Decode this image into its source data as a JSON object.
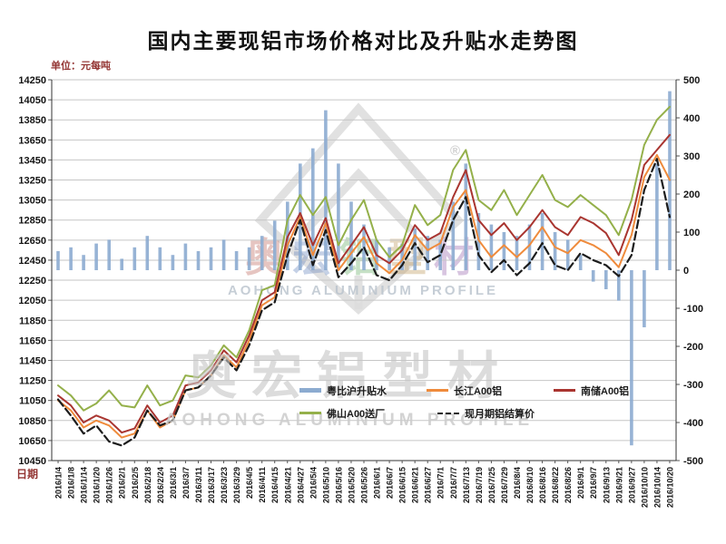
{
  "watermark": {
    "cn": "奥宏铝型材",
    "en": "AOHONG ALUMINIUM PROFILE",
    "registered_mark": "®",
    "char_colors": [
      "#bf6a5e",
      "#6a88bf",
      "#6ab06a",
      "#bf9a5e",
      "#9a6ab0"
    ]
  },
  "chart_data": {
    "type": "bar+line",
    "title": "国内主要现铝市场价格对比及升贴水走势图",
    "ylabel": "单位：元每吨",
    "xlabel": "日期",
    "grid": true,
    "legend_position": "bottom-inside",
    "left_axis": {
      "min": 10450,
      "max": 14250,
      "step": 200,
      "ticks": [
        "14250",
        "14050",
        "13850",
        "13650",
        "13450",
        "13250",
        "13050",
        "12850",
        "12650",
        "12450",
        "12250",
        "12050",
        "11850",
        "11650",
        "11450",
        "11250",
        "11050",
        "10850",
        "10650",
        "10450"
      ]
    },
    "right_axis": {
      "min": -500,
      "max": 500,
      "step": 100,
      "ticks": [
        "500",
        "400",
        "300",
        "200",
        "100",
        "0",
        "-100",
        "-200",
        "-300",
        "-400",
        "-500"
      ]
    },
    "categories": [
      "2016/1/4",
      "2016/1/8",
      "2016/1/14",
      "2016/1/20",
      "2016/1/26",
      "2016/2/1",
      "2016/2/5",
      "2016/2/18",
      "2016/2/24",
      "2016/3/1",
      "2016/3/7",
      "2016/3/11",
      "2016/3/17",
      "2016/3/23",
      "2016/3/29",
      "2016/4/5",
      "2016/4/11",
      "2016/4/15",
      "2016/4/21",
      "2016/4/27",
      "2016/5/4",
      "2016/5/10",
      "2016/5/16",
      "2016/5/20",
      "2016/5/26",
      "2016/6/1",
      "2016/6/7",
      "2016/6/15",
      "2016/6/21",
      "2016/6/27",
      "2016/7/1",
      "2016/7/7",
      "2016/7/13",
      "2016/7/19",
      "2016/7/25",
      "2016/7/29",
      "2016/8/4",
      "2016/8/10",
      "2016/8/16",
      "2016/8/22",
      "2016/8/26",
      "2016/9/1",
      "2016/9/7",
      "2016/9/13",
      "2016/9/21",
      "2016/9/27",
      "2016/10/10",
      "2016/10/14",
      "2016/10/20"
    ],
    "bar_series": {
      "name": "粤比沪升贴水",
      "axis": "right",
      "color": "#8cabd0",
      "values": [
        50,
        60,
        40,
        70,
        80,
        30,
        60,
        90,
        60,
        40,
        70,
        50,
        60,
        80,
        50,
        60,
        90,
        130,
        180,
        280,
        320,
        420,
        280,
        180,
        120,
        80,
        60,
        70,
        110,
        90,
        80,
        180,
        280,
        150,
        120,
        100,
        90,
        120,
        150,
        100,
        80,
        40,
        -30,
        -50,
        -80,
        -460,
        -150,
        280,
        470
      ]
    },
    "line_series": [
      {
        "name": "长江A00铝",
        "color": "#ef8b3c",
        "dash": false,
        "values": [
          11050,
          10950,
          10780,
          10850,
          10800,
          10680,
          10720,
          10950,
          10780,
          10850,
          11150,
          11180,
          11300,
          11500,
          11380,
          11650,
          12000,
          12080,
          12600,
          12880,
          12500,
          12820,
          12350,
          12520,
          12680,
          12420,
          12320,
          12450,
          12700,
          12550,
          12620,
          12980,
          13150,
          12650,
          12480,
          12600,
          12480,
          12600,
          12780,
          12580,
          12520,
          12650,
          12600,
          12520,
          12380,
          12700,
          13280,
          13500,
          13250
        ]
      },
      {
        "name": "南储A00铝",
        "color": "#a93530",
        "dash": false,
        "values": [
          11100,
          11000,
          10830,
          10900,
          10850,
          10730,
          10770,
          11000,
          10830,
          10900,
          11200,
          11230,
          11350,
          11550,
          11430,
          11700,
          12050,
          12130,
          12680,
          12920,
          12600,
          12870,
          12420,
          12600,
          12780,
          12500,
          12420,
          12550,
          12800,
          12650,
          12720,
          13080,
          13350,
          12850,
          12700,
          12820,
          12650,
          12780,
          12950,
          12780,
          12700,
          12880,
          12820,
          12720,
          12500,
          12850,
          13400,
          13550,
          13700
        ]
      },
      {
        "name": "佛山A00送厂",
        "color": "#94b04a",
        "dash": false,
        "values": [
          11200,
          11100,
          10950,
          11020,
          11150,
          11000,
          10980,
          11200,
          11000,
          11050,
          11300,
          11280,
          11400,
          11600,
          11480,
          11750,
          12150,
          12200,
          12850,
          13100,
          12900,
          13080,
          12600,
          12850,
          13050,
          12650,
          12480,
          12600,
          13000,
          12800,
          12900,
          13350,
          13550,
          13050,
          12950,
          13150,
          12900,
          13100,
          13300,
          13050,
          12980,
          13100,
          13000,
          12900,
          12700,
          13050,
          13600,
          13850,
          13980
        ]
      },
      {
        "name": "现月期铝结算价",
        "color": "#1c1c1c",
        "dash": true,
        "values": [
          11060,
          10900,
          10720,
          10800,
          10640,
          10600,
          10680,
          10950,
          10800,
          10850,
          11150,
          11180,
          11300,
          11480,
          11350,
          11600,
          11950,
          12030,
          12500,
          12850,
          12400,
          12750,
          12280,
          12420,
          12580,
          12300,
          12250,
          12400,
          12620,
          12430,
          12500,
          12850,
          13080,
          12500,
          12330,
          12450,
          12300,
          12420,
          12620,
          12400,
          12350,
          12520,
          12450,
          12400,
          12290,
          12500,
          13150,
          13460,
          12880
        ]
      }
    ],
    "legend": [
      {
        "label": "粤比沪升贴水",
        "color": "#8cabd0",
        "type": "bar"
      },
      {
        "label": "长江A00铝",
        "color": "#ef8b3c",
        "type": "line"
      },
      {
        "label": "南储A00铝",
        "color": "#a93530",
        "type": "line"
      },
      {
        "label": "佛山A00送厂",
        "color": "#94b04a",
        "type": "line"
      },
      {
        "label": "现月期铝结算价",
        "color": "#1c1c1c",
        "type": "dashed-line"
      }
    ]
  }
}
